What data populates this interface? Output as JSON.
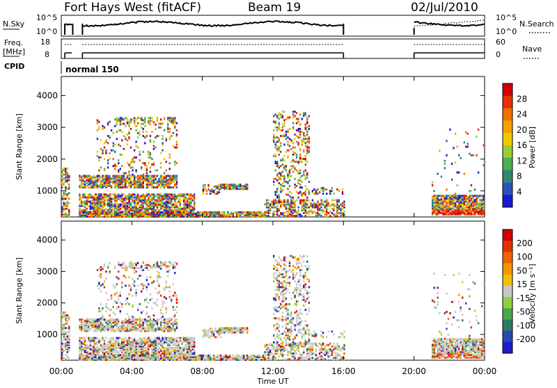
{
  "header": {
    "title": "Fort Hays West (fitACF)",
    "beam": "Beam 19",
    "date": "02/Jul/2010"
  },
  "top_panel": {
    "nsky_label": "N.Sky",
    "nsky_ticks": [
      "10^5",
      "10^0"
    ],
    "nsearch_label": "N.Search",
    "nsearch_ticks": [
      "10^5",
      "10^0"
    ],
    "freq_label": "Freq.",
    "freq_unit": "[MHz]",
    "freq_ticks": [
      "18",
      "8"
    ],
    "nave_label": "Nave",
    "nave_ticks": [
      "60",
      "0"
    ],
    "cpid_label": "CPID",
    "cpid_value": "normal 150"
  },
  "colors": {
    "power": [
      "#1a1ad2",
      "#2a55b8",
      "#2d8a6e",
      "#4fae4f",
      "#9acd32",
      "#f0c800",
      "#f5a000",
      "#f06e00",
      "#e63200",
      "#d20000"
    ],
    "velocity": [
      "#1c1cc8",
      "#2a48b0",
      "#2f7a64",
      "#48a848",
      "#8cd040",
      "#c8c8c8",
      "#f0c000",
      "#f59600",
      "#f06400",
      "#e03200",
      "#d20000"
    ]
  },
  "chart_data": [
    {
      "type": "heatmap",
      "name": "power",
      "ylabel": "Slant Range [km]",
      "xlabel": "",
      "xlim_hours": [
        0,
        24
      ],
      "x_ticks": [
        "00:00",
        "04:00",
        "08:00",
        "12:00",
        "16:00",
        "20:00",
        "00:00"
      ],
      "ylim_km": [
        180,
        4600
      ],
      "y_ticks": [
        1000,
        2000,
        3000,
        4000
      ],
      "colorbar": {
        "label": "Power [dB]",
        "ticks": [
          "28",
          "24",
          "20",
          "16",
          "12",
          "8",
          "4"
        ]
      }
    },
    {
      "type": "heatmap",
      "name": "velocity",
      "ylabel": "Slant Range [km]",
      "xlabel": "Time UT",
      "xlim_hours": [
        0,
        24
      ],
      "x_ticks": [
        "00:00",
        "04:00",
        "08:00",
        "12:00",
        "16:00",
        "20:00",
        "00:00"
      ],
      "ylim_km": [
        180,
        4600
      ],
      "y_ticks": [
        1000,
        2000,
        3000,
        4000
      ],
      "colorbar": {
        "label": "Velocity [m s⁻¹]",
        "ticks": [
          "200",
          "100",
          "50",
          "15",
          "-15",
          "-50",
          "-100",
          "-200"
        ]
      }
    }
  ]
}
